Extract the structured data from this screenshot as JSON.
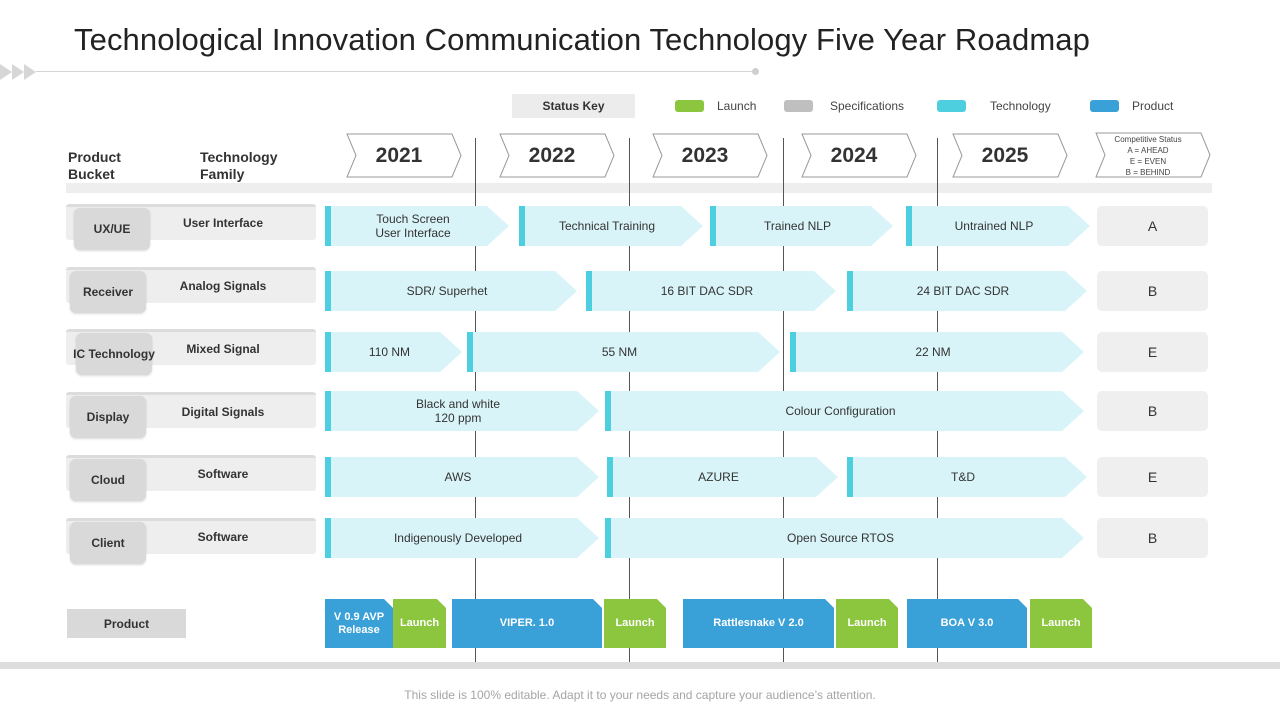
{
  "title": "Technological Innovation Communication Technology Five Year Roadmap",
  "status_key": {
    "label": "Status Key",
    "legend": [
      {
        "label": "Launch",
        "color": "#8cc63f"
      },
      {
        "label": "Specifications",
        "color": "#bfbfbf"
      },
      {
        "label": "Technology",
        "color": "#4ecfe0"
      },
      {
        "label": "Product",
        "color": "#3aa0d8"
      }
    ]
  },
  "headers": {
    "product_bucket": "Product Bucket",
    "technology_family": "Technology Family",
    "years": [
      "2021",
      "2022",
      "2023",
      "2024",
      "2025"
    ],
    "competitive_status": [
      "Competitive Status",
      "A = AHEAD",
      "E = EVEN",
      "B = BEHIND"
    ]
  },
  "rows": [
    {
      "bucket": "UX/UE",
      "family": "User Interface",
      "segments": [
        {
          "line1": "Touch Screen",
          "line2": "User Interface"
        },
        {
          "line1": "Technical Training"
        },
        {
          "line1": "Trained NLP"
        },
        {
          "line1": "Untrained NLP"
        }
      ],
      "status": "A"
    },
    {
      "bucket": "Receiver",
      "family": "Analog  Signals",
      "segments": [
        {
          "line1": "SDR/ Superhet"
        },
        {
          "line1": "16 BIT DAC SDR"
        },
        {
          "line1": "24 BIT DAC SDR"
        }
      ],
      "status": "B"
    },
    {
      "bucket": "IC Technology",
      "family": "Mixed Signal",
      "segments": [
        {
          "line1": "110 NM"
        },
        {
          "line1": "55 NM"
        },
        {
          "line1": "22 NM"
        }
      ],
      "status": "E"
    },
    {
      "bucket": "Display",
      "family": "Digital  Signals",
      "segments": [
        {
          "line1": "Black and white",
          "line2": "120 ppm"
        },
        {
          "line1": "Colour Configuration"
        }
      ],
      "status": "B"
    },
    {
      "bucket": "Cloud",
      "family": "Software",
      "segments": [
        {
          "line1": "AWS"
        },
        {
          "line1": "AZURE"
        },
        {
          "line1": "T&D"
        }
      ],
      "status": "E"
    },
    {
      "bucket": "Client",
      "family": "Software",
      "segments": [
        {
          "line1": "Indigenously Developed"
        },
        {
          "line1": "Open Source RTOS"
        }
      ],
      "status": "B"
    }
  ],
  "product": {
    "label": "Product",
    "items": [
      {
        "line1": "V 0.9 AVP",
        "line2": "Release",
        "type": "product"
      },
      {
        "line1": "Launch",
        "type": "launch"
      },
      {
        "line1": "VIPER. 1.0",
        "type": "product"
      },
      {
        "line1": "Launch",
        "type": "launch"
      },
      {
        "line1": "Rattlesnake V 2.0",
        "type": "product"
      },
      {
        "line1": "Launch",
        "type": "launch"
      },
      {
        "line1": "BOA  V 3.0",
        "type": "product"
      },
      {
        "line1": "Launch",
        "type": "launch"
      }
    ]
  },
  "footer": "This slide is 100% editable. Adapt it to your needs and capture your audience’s attention."
}
